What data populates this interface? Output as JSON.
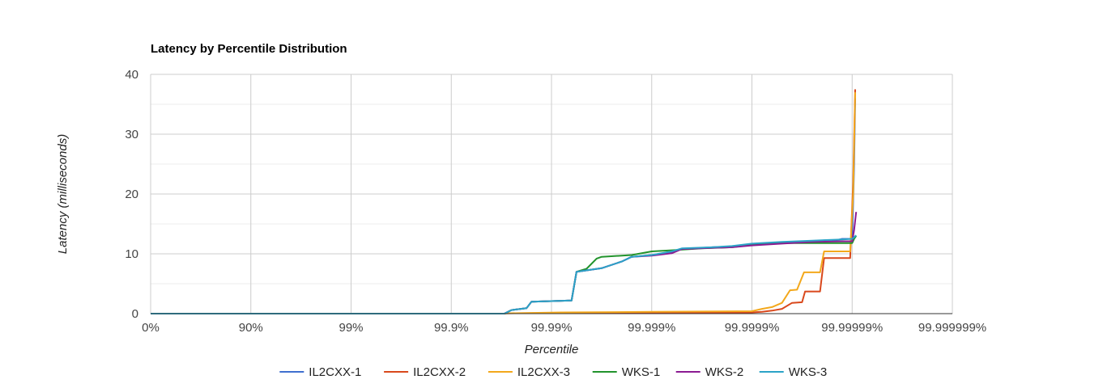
{
  "chart_data": {
    "type": "line",
    "title": "Latency by Percentile Distribution",
    "xlabel": "Percentile",
    "ylabel": "Latency (milliseconds)",
    "x_scale": "percentile (nines), log of 1/(1-p)",
    "x_ticks": [
      {
        "label": "0%",
        "nines": 0
      },
      {
        "label": "90%",
        "nines": 1
      },
      {
        "label": "99%",
        "nines": 2
      },
      {
        "label": "99.9%",
        "nines": 3
      },
      {
        "label": "99.99%",
        "nines": 4
      },
      {
        "label": "99.999%",
        "nines": 5
      },
      {
        "label": "99.9999%",
        "nines": 6
      },
      {
        "label": "99.99999%",
        "nines": 7
      },
      {
        "label": "99.999999%",
        "nines": 8
      }
    ],
    "y_ticks": [
      0,
      10,
      20,
      30,
      40
    ],
    "ylim": [
      0,
      40
    ],
    "xlim_nines": [
      0,
      8
    ],
    "grid": true,
    "legend_position": "bottom",
    "series": [
      {
        "name": "IL2CXX-1",
        "color": "#3f6fcf",
        "points": [
          [
            0,
            0
          ],
          [
            3.53,
            0
          ],
          [
            3.6,
            0.6
          ],
          [
            3.75,
            0.9
          ],
          [
            3.8,
            2.0
          ],
          [
            4.0,
            2.1
          ],
          [
            4.2,
            2.2
          ],
          [
            4.25,
            7.0
          ],
          [
            4.5,
            7.6
          ],
          [
            4.7,
            8.7
          ],
          [
            4.8,
            9.5
          ],
          [
            5.0,
            9.8
          ],
          [
            5.2,
            10.3
          ],
          [
            5.3,
            10.8
          ],
          [
            5.6,
            11.1
          ],
          [
            5.8,
            11.2
          ],
          [
            6.0,
            11.6
          ],
          [
            6.3,
            11.9
          ],
          [
            6.5,
            12.0
          ],
          [
            6.8,
            12.1
          ],
          [
            6.9,
            12.5
          ],
          [
            7.0,
            12.5
          ],
          [
            7.02,
            25.0
          ],
          [
            7.03,
            36.0
          ]
        ]
      },
      {
        "name": "IL2CXX-2",
        "color": "#d9481c",
        "points": [
          [
            0,
            0
          ],
          [
            3.53,
            0
          ],
          [
            3.55,
            0.05
          ],
          [
            4.1,
            0.1
          ],
          [
            5.0,
            0.1
          ],
          [
            5.5,
            0.15
          ],
          [
            6.0,
            0.2
          ],
          [
            6.1,
            0.3
          ],
          [
            6.2,
            0.5
          ],
          [
            6.3,
            0.8
          ],
          [
            6.4,
            1.8
          ],
          [
            6.5,
            1.9
          ],
          [
            6.53,
            3.7
          ],
          [
            6.68,
            3.7
          ],
          [
            6.72,
            9.3
          ],
          [
            6.98,
            9.3
          ],
          [
            7.01,
            22.0
          ],
          [
            7.03,
            37.5
          ]
        ]
      },
      {
        "name": "IL2CXX-3",
        "color": "#f3a81c",
        "points": [
          [
            0,
            0
          ],
          [
            3.53,
            0
          ],
          [
            3.55,
            0.05
          ],
          [
            4.1,
            0.2
          ],
          [
            5.0,
            0.3
          ],
          [
            5.5,
            0.35
          ],
          [
            6.0,
            0.4
          ],
          [
            6.1,
            0.8
          ],
          [
            6.2,
            1.1
          ],
          [
            6.3,
            1.8
          ],
          [
            6.38,
            3.9
          ],
          [
            6.45,
            4.0
          ],
          [
            6.52,
            6.9
          ],
          [
            6.68,
            6.9
          ],
          [
            6.72,
            10.4
          ],
          [
            6.98,
            10.4
          ],
          [
            7.01,
            20.0
          ],
          [
            7.03,
            37.0
          ]
        ]
      },
      {
        "name": "WKS-1",
        "color": "#22932c",
        "points": [
          [
            0,
            0
          ],
          [
            3.53,
            0
          ],
          [
            3.6,
            0.6
          ],
          [
            3.75,
            0.9
          ],
          [
            3.8,
            2.0
          ],
          [
            4.0,
            2.1
          ],
          [
            4.2,
            2.2
          ],
          [
            4.25,
            7.0
          ],
          [
            4.35,
            7.5
          ],
          [
            4.45,
            9.2
          ],
          [
            4.5,
            9.5
          ],
          [
            4.8,
            9.8
          ],
          [
            5.0,
            10.4
          ],
          [
            5.2,
            10.6
          ],
          [
            5.5,
            10.9
          ],
          [
            5.8,
            11.1
          ],
          [
            6.0,
            11.5
          ],
          [
            6.3,
            11.8
          ],
          [
            6.6,
            11.8
          ],
          [
            7.0,
            11.8
          ],
          [
            7.02,
            12.5
          ],
          [
            7.04,
            13.0
          ]
        ]
      },
      {
        "name": "WKS-2",
        "color": "#8b1b92",
        "points": [
          [
            0,
            0
          ],
          [
            3.53,
            0
          ],
          [
            3.6,
            0.6
          ],
          [
            3.75,
            0.9
          ],
          [
            3.8,
            2.0
          ],
          [
            4.0,
            2.1
          ],
          [
            4.2,
            2.2
          ],
          [
            4.25,
            7.0
          ],
          [
            4.5,
            7.6
          ],
          [
            4.7,
            8.7
          ],
          [
            4.8,
            9.5
          ],
          [
            5.0,
            9.7
          ],
          [
            5.2,
            10.1
          ],
          [
            5.3,
            10.8
          ],
          [
            5.6,
            11.0
          ],
          [
            5.8,
            11.1
          ],
          [
            6.0,
            11.4
          ],
          [
            6.3,
            11.7
          ],
          [
            6.6,
            12.0
          ],
          [
            6.9,
            12.1
          ],
          [
            7.0,
            12.1
          ],
          [
            7.02,
            14.0
          ],
          [
            7.04,
            17.0
          ]
        ]
      },
      {
        "name": "WKS-3",
        "color": "#2ba3c7",
        "points": [
          [
            0,
            0
          ],
          [
            3.53,
            0
          ],
          [
            3.6,
            0.6
          ],
          [
            3.75,
            0.9
          ],
          [
            3.8,
            2.0
          ],
          [
            4.0,
            2.1
          ],
          [
            4.2,
            2.2
          ],
          [
            4.25,
            7.0
          ],
          [
            4.5,
            7.6
          ],
          [
            4.7,
            8.7
          ],
          [
            4.8,
            9.5
          ],
          [
            5.0,
            9.8
          ],
          [
            5.2,
            10.4
          ],
          [
            5.3,
            10.9
          ],
          [
            5.6,
            11.1
          ],
          [
            5.8,
            11.3
          ],
          [
            6.0,
            11.7
          ],
          [
            6.3,
            12.0
          ],
          [
            6.6,
            12.2
          ],
          [
            6.9,
            12.4
          ],
          [
            7.0,
            12.5
          ],
          [
            7.04,
            13.1
          ]
        ]
      }
    ]
  }
}
